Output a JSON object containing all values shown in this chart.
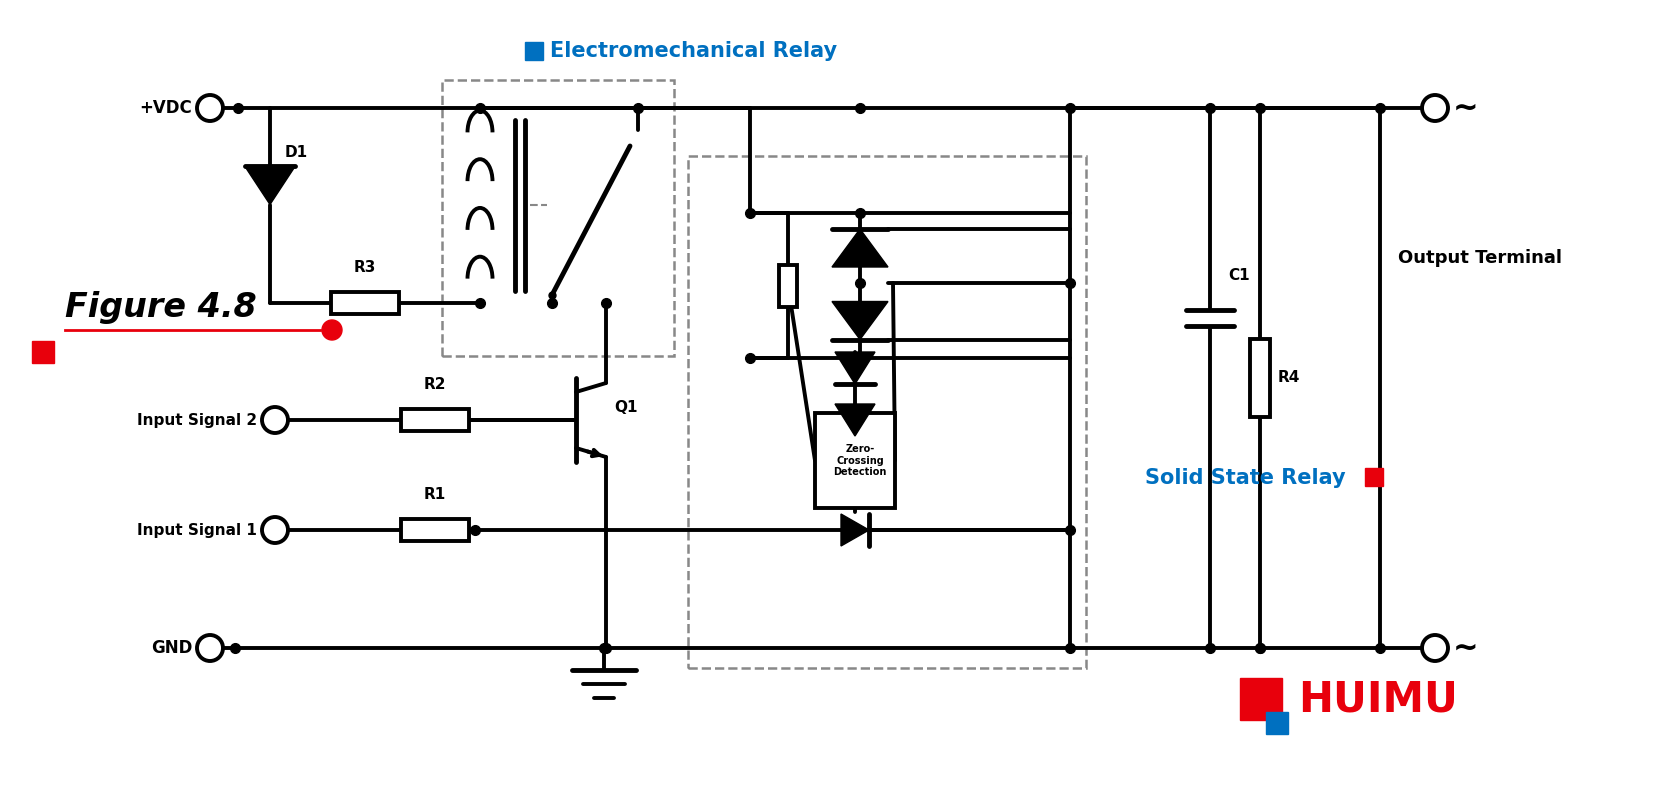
{
  "title": "Figure 4.8",
  "emr_label": "Electromechanical Relay",
  "ssr_label": "Solid State Relay",
  "huimu_label": "HUIMU",
  "output_terminal_label": "Output Terminal",
  "colors": {
    "black": "#000000",
    "red": "#E8000C",
    "blue": "#0070C0",
    "gray": "#888888",
    "white": "#FFFFFF"
  },
  "lw": 2.8,
  "lw_thick": 3.5
}
